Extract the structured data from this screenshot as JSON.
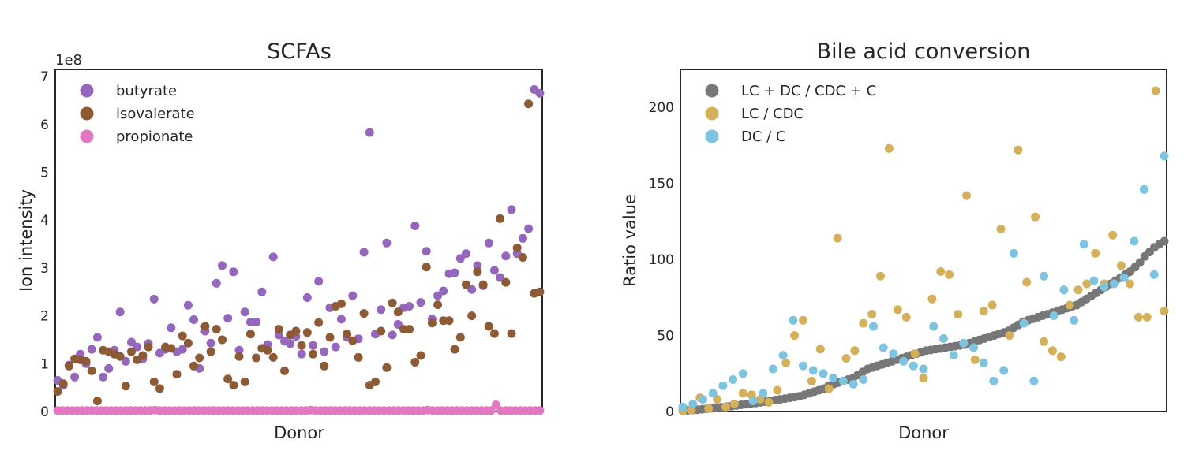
{
  "chart_data": [
    {
      "type": "scatter",
      "title": "SCFAs",
      "xlabel": "Donor",
      "ylabel": "Ion intensity",
      "y_scale_label": "1e8",
      "xlim": [
        0,
        101
      ],
      "ylim": [
        0,
        7.15
      ],
      "yticks": [
        "0",
        "1",
        "2",
        "3",
        "4",
        "5",
        "6",
        "7"
      ],
      "ytick_values": [
        0,
        1,
        2,
        3,
        4,
        5,
        6,
        7
      ],
      "grid": false,
      "legend": "top-left",
      "series": [
        {
          "name": "butyrate",
          "color": "#9467bd",
          "values": [
            0.65,
            0.55,
            0.97,
            0.72,
            1.2,
            1.0,
            1.3,
            1.55,
            0.72,
            0.9,
            1.28,
            2.08,
            1.05,
            1.45,
            1.35,
            1.1,
            1.42,
            2.35,
            1.22,
            1.3,
            1.75,
            1.25,
            1.3,
            2.22,
            1.92,
            0.9,
            1.68,
            1.43,
            2.68,
            3.05,
            1.95,
            2.92,
            1.28,
            2.08,
            1.87,
            1.87,
            2.5,
            1.4,
            3.23,
            1.6,
            1.47,
            1.42,
            1.57,
            1.2,
            2.38,
            1.38,
            2.72,
            1.25,
            2.17,
            1.35,
            1.93,
            1.55,
            2.42,
            1.52,
            3.33,
            5.83,
            1.62,
            2.13,
            3.52,
            1.6,
            1.82,
            2.17,
            2.2,
            3.88,
            2.28,
            3.35,
            1.93,
            2.42,
            2.52,
            2.88,
            2.9,
            3.2,
            3.3,
            2.55,
            3.05,
            2.63,
            3.52,
            2.95,
            2.8,
            3.25,
            4.22,
            3.3,
            3.62,
            3.82,
            6.73,
            6.65
          ]
        },
        {
          "name": "isovalerate",
          "color": "#8c5a35",
          "values": [
            0.42,
            0.58,
            0.95,
            1.1,
            1.08,
            1.05,
            0.85,
            0.22,
            1.28,
            1.25,
            1.2,
            1.15,
            0.53,
            1.25,
            1.08,
            1.17,
            1.35,
            0.62,
            0.48,
            1.35,
            1.32,
            0.78,
            1.58,
            1.43,
            0.95,
            1.12,
            1.78,
            1.25,
            1.72,
            1.5,
            0.68,
            0.55,
            1.15,
            0.62,
            1.62,
            1.12,
            1.32,
            1.28,
            1.13,
            1.72,
            0.85,
            1.6,
            1.68,
            1.38,
            1.65,
            1.2,
            1.86,
            0.95,
            1.55,
            2.2,
            2.25,
            1.62,
            1.48,
            1.13,
            2.05,
            0.55,
            0.62,
            1.68,
            0.92,
            2.27,
            2.08,
            1.72,
            1.72,
            1.03,
            1.17,
            3.02,
            1.85,
            2.23,
            1.9,
            1.9,
            1.3,
            1.55,
            2.65,
            2.0,
            2.92,
            2.65,
            1.78,
            1.63,
            4.03,
            2.7,
            1.63,
            3.42,
            3.22,
            6.43,
            2.47,
            2.5
          ]
        },
        {
          "name": "propionate",
          "color": "#e377c2",
          "values": [
            0.02,
            0.02,
            0.02,
            0.02,
            0.02,
            0.02,
            0.02,
            0.02,
            0.02,
            0.02,
            0.02,
            0.02,
            0.02,
            0.02,
            0.02,
            0.02,
            0.02,
            0.02,
            0.02,
            0.02,
            0.03,
            0.02,
            0.02,
            0.02,
            0.02,
            0.02,
            0.02,
            0.02,
            0.02,
            0.02,
            0.02,
            0.02,
            0.02,
            0.02,
            0.02,
            0.02,
            0.02,
            0.02,
            0.02,
            0.02,
            0.02,
            0.02,
            0.02,
            0.02,
            0.02,
            0.02,
            0.02,
            0.02,
            0.02,
            0.02,
            0.02,
            0.02,
            0.03,
            0.02,
            0.02,
            0.02,
            0.02,
            0.02,
            0.02,
            0.02,
            0.02,
            0.02,
            0.02,
            0.02,
            0.02,
            0.02,
            0.02,
            0.02,
            0.02,
            0.02,
            0.02,
            0.02,
            0.02,
            0.02,
            0.02,
            0.02,
            0.03,
            0.02,
            0.02,
            0.02,
            0.02,
            0.02,
            0.02,
            0.02,
            0.02,
            0.02,
            0.02,
            0.02,
            0.02,
            0.02,
            0.14,
            0.02,
            0.02,
            0.02,
            0.02,
            0.02,
            0.02,
            0.02,
            0.02,
            0.02
          ]
        }
      ]
    },
    {
      "type": "scatter",
      "title": "Bile acid conversion",
      "xlabel": "Donor",
      "ylabel": "Ion intensity",
      "ylabel_display": "Ratio value",
      "xlim": [
        0,
        101
      ],
      "ylim": [
        0,
        225
      ],
      "yticks": [
        "0",
        "50",
        "100",
        "150",
        "200"
      ],
      "ytick_values": [
        0,
        50,
        100,
        150,
        200
      ],
      "grid": false,
      "legend": "top-left",
      "series": [
        {
          "name": "LC + DC / CDC + C",
          "color": "#777777",
          "values": [
            0.5,
            0.8,
            1.0,
            1.2,
            1.5,
            1.8,
            2.1,
            2.4,
            2.8,
            3.2,
            3.6,
            4.0,
            4.4,
            4.8,
            5.2,
            5.6,
            6.0,
            6.5,
            7.0,
            7.5,
            8.0,
            8.5,
            9.0,
            9.5,
            10,
            11,
            12,
            13,
            14,
            15,
            17,
            18,
            19,
            20,
            21,
            22,
            24,
            26,
            28,
            29,
            30,
            31,
            32,
            33,
            34,
            35,
            36,
            37,
            38,
            39,
            40,
            40.5,
            41,
            41.5,
            42,
            42.5,
            43,
            43.5,
            44,
            45,
            46,
            47,
            48,
            49,
            50,
            51,
            52,
            53,
            55,
            57,
            59,
            60,
            61,
            62,
            63,
            64,
            65,
            66,
            67,
            68,
            69,
            70,
            72,
            74,
            76,
            78,
            80,
            82,
            84,
            86,
            88,
            90,
            92,
            95,
            98,
            102,
            105,
            108,
            110,
            112
          ]
        },
        {
          "name": "LC / CDC",
          "color": "#d4b05a",
          "values": [
            0.5,
            1.0,
            9.0,
            2.0,
            8.0,
            3.0,
            5.0,
            12.0,
            11.0,
            8.0,
            6.0,
            14.0,
            32.0,
            50.0,
            60.0,
            20.0,
            41.0,
            15.0,
            114.0,
            35.0,
            40.0,
            58.0,
            64.0,
            89.0,
            173.0,
            67.0,
            62.0,
            38.0,
            22.0,
            74.0,
            92.0,
            90.0,
            64.0,
            142.0,
            34.0,
            66.0,
            70.0,
            120.0,
            50.0,
            172.0,
            85.0,
            128.0,
            46.0,
            40.0,
            36.0,
            70.0,
            80.0,
            84.0,
            104.0,
            84.0,
            116.0,
            96.0,
            84.0,
            62.0,
            62.0,
            211.0,
            66.0
          ]
        },
        {
          "name": "DC / C",
          "color": "#7ec4e0",
          "values": [
            3.0,
            5.0,
            8.0,
            12.0,
            17.0,
            21.0,
            25.0,
            7.0,
            12.0,
            28.0,
            37.0,
            60.0,
            30.0,
            27.0,
            25.0,
            22.0,
            20.0,
            18.0,
            21.0,
            56.0,
            42.0,
            38.0,
            33.0,
            30.0,
            28.0,
            56.0,
            48.0,
            37.0,
            45.0,
            42.0,
            32.0,
            20.0,
            27.0,
            104.0,
            58.0,
            20.0,
            89.0,
            63.0,
            80.0,
            60.0,
            110.0,
            86.0,
            82.0,
            84.0,
            88.0,
            112.0,
            146.0,
            90.0,
            168.0
          ]
        }
      ]
    }
  ]
}
